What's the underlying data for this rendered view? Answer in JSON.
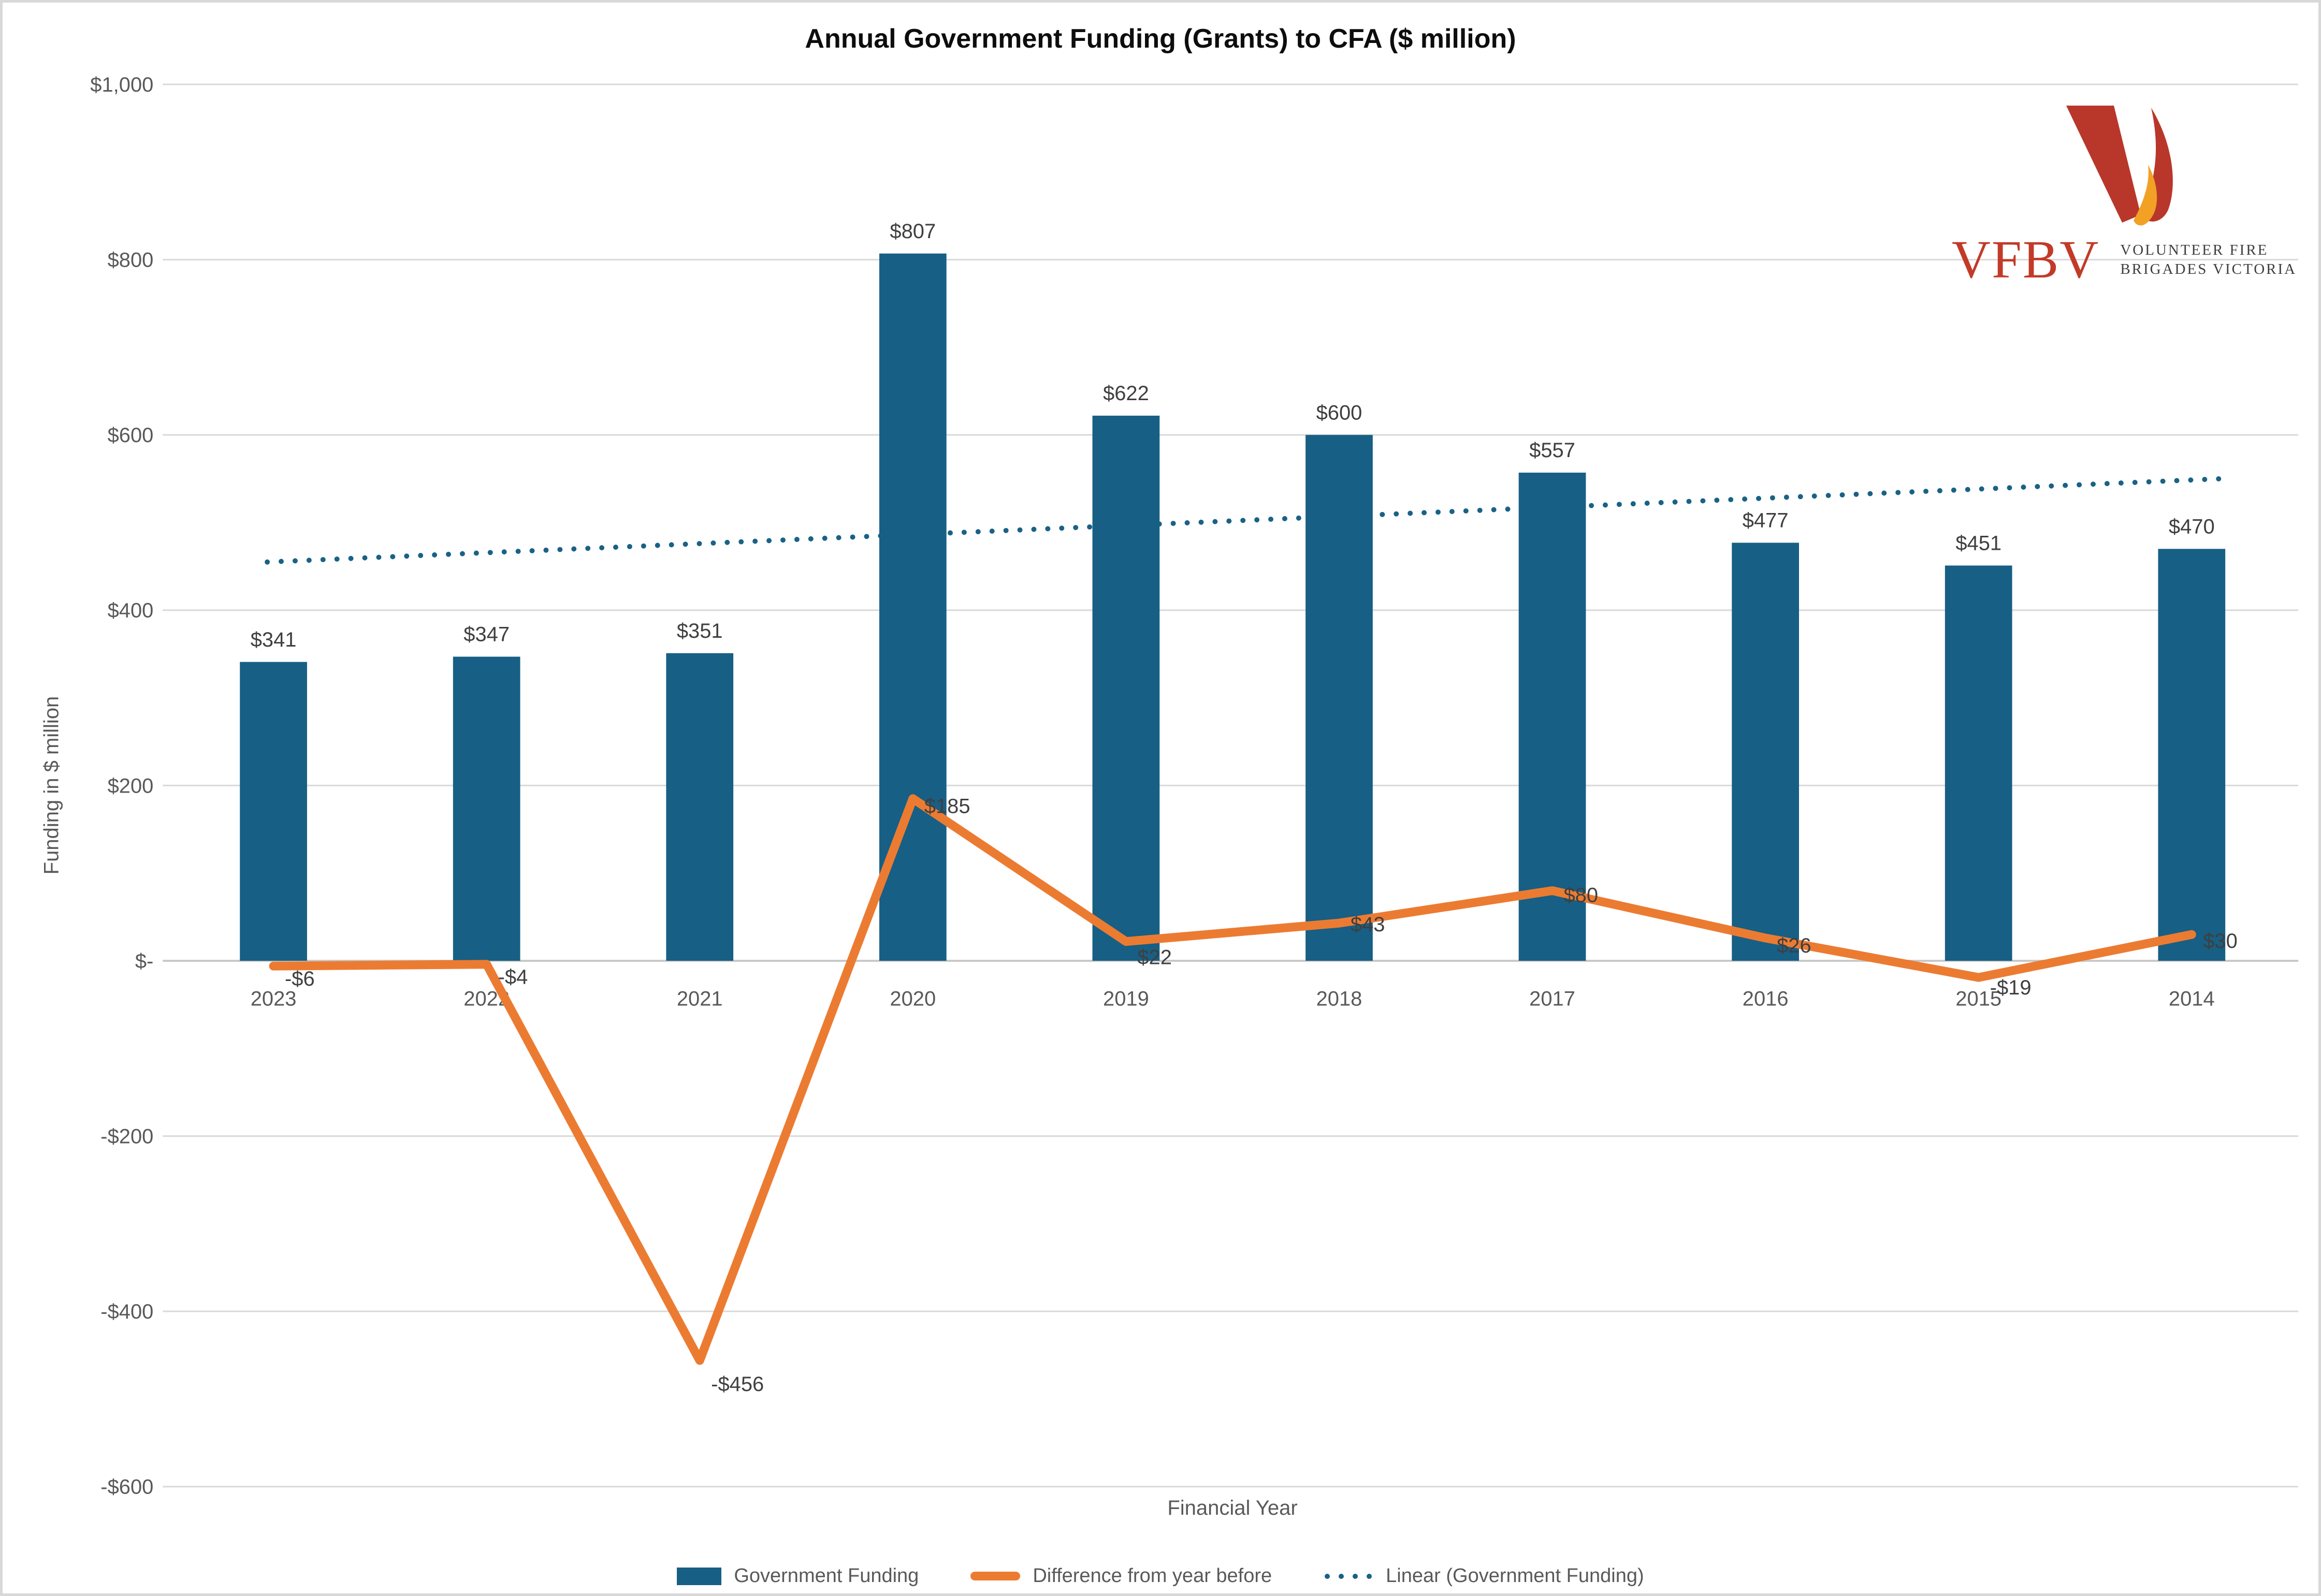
{
  "title": "Annual Government Funding (Grants) to CFA ($ million)",
  "logo": {
    "wordmark": "VFBV",
    "tagline_line1": "VOLUNTEER FIRE",
    "tagline_line2": "BRIGADES VICTORIA",
    "colors": {
      "red": "#C23A28",
      "flame_red": "#B8372A",
      "flame_orange": "#F2A124",
      "tagline_gray": "#3E3E3E"
    }
  },
  "chart_data": {
    "type": "combo",
    "categories": [
      "2023",
      "2022",
      "2021",
      "2020",
      "2019",
      "2018",
      "2017",
      "2016",
      "2015",
      "2014"
    ],
    "x_axis": {
      "title": "Financial Year"
    },
    "y_axis": {
      "title": "Funding in $ million",
      "min": -600,
      "max": 1000,
      "tick_step": 200,
      "ticks": [
        {
          "value": 1000,
          "label": "$1,000"
        },
        {
          "value": 800,
          "label": "$800"
        },
        {
          "value": 600,
          "label": "$600"
        },
        {
          "value": 400,
          "label": "$400"
        },
        {
          "value": 200,
          "label": "$200"
        },
        {
          "value": 0,
          "label": "$-"
        },
        {
          "value": -200,
          "label": "-$200"
        },
        {
          "value": -400,
          "label": "-$400"
        },
        {
          "value": -600,
          "label": "-$600"
        }
      ]
    },
    "series": [
      {
        "name": "Government Funding",
        "type": "bar",
        "color": "#175F85",
        "values": [
          341,
          347,
          351,
          807,
          622,
          600,
          557,
          477,
          451,
          470
        ],
        "data_labels": [
          "$341",
          "$347",
          "$351",
          "$807",
          "$622",
          "$600",
          "$557",
          "$477",
          "$451",
          "$470"
        ]
      },
      {
        "name": "Difference from year before",
        "type": "line",
        "color": "#EC7B32",
        "values": [
          -6,
          -4,
          -456,
          185,
          22,
          43,
          80,
          26,
          -19,
          30
        ],
        "data_labels": [
          "-$6",
          "-$4",
          "-$456",
          "$185",
          "$22",
          "$43",
          "$80",
          "$26",
          "-$19",
          "$30"
        ]
      },
      {
        "name": "Linear (Government Funding)",
        "type": "trendline",
        "style": "dotted",
        "color": "#1A6285",
        "start_value": 455,
        "end_value": 550
      }
    ],
    "grid": true,
    "gridline_color": "#D9D9D9",
    "zero_line_color": "#C9C9C9",
    "label_color": "#3F3F3F",
    "axis_text_color": "#595959",
    "legend_position": "bottom"
  }
}
